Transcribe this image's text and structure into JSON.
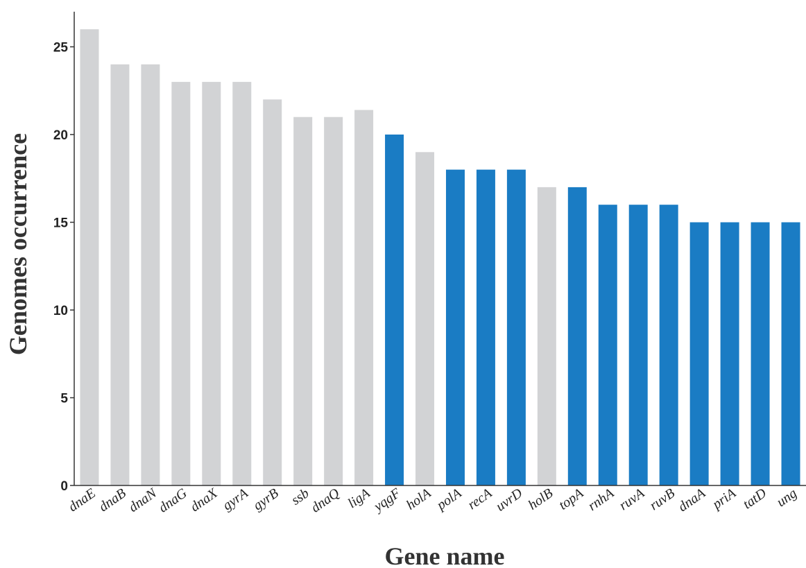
{
  "chart_data": {
    "type": "bar",
    "title": "",
    "xlabel": "Gene name",
    "ylabel": "Genomes occurrence",
    "ylim": [
      0,
      27
    ],
    "yticks": [
      0,
      5,
      10,
      15,
      20,
      25
    ],
    "grid": false,
    "legend": "none",
    "colors": {
      "gray": "#d2d3d5",
      "blue": "#1a7cc4"
    },
    "categories": [
      "dnaE",
      "dnaB",
      "dnaN",
      "dnaG",
      "dnaX",
      "gyrA",
      "gyrB",
      "ssb",
      "dnaQ",
      "ligA",
      "yqgF",
      "holA",
      "polA",
      "recA",
      "uvrD",
      "holB",
      "topA",
      "rnhA",
      "ruvA",
      "ruvB",
      "dnaA",
      "priA",
      "tatD",
      "ung"
    ],
    "values": [
      26,
      24,
      24,
      23,
      23,
      23,
      22,
      21,
      21,
      21.4,
      20,
      19,
      18,
      18,
      18,
      17,
      17,
      16,
      16,
      16,
      15,
      15,
      15,
      15
    ],
    "bar_colors": [
      "gray",
      "gray",
      "gray",
      "gray",
      "gray",
      "gray",
      "gray",
      "gray",
      "gray",
      "gray",
      "blue",
      "gray",
      "blue",
      "blue",
      "blue",
      "gray",
      "blue",
      "blue",
      "blue",
      "blue",
      "blue",
      "blue",
      "blue",
      "blue"
    ]
  }
}
